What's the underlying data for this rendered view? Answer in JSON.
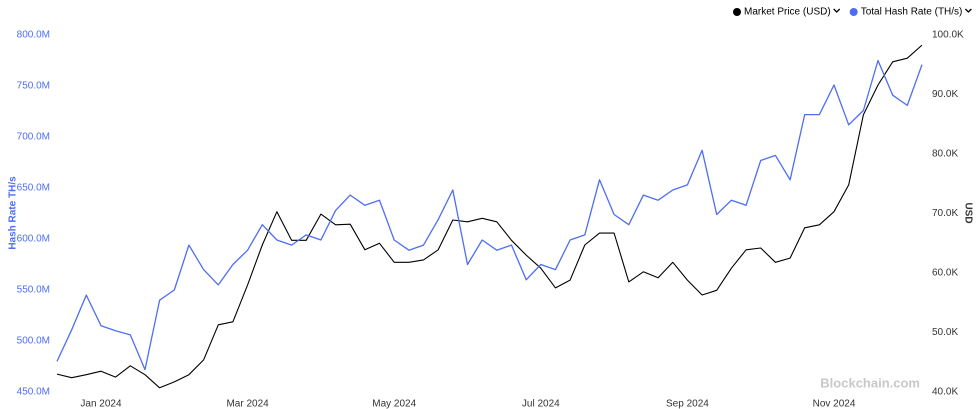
{
  "chart_data": {
    "type": "line",
    "categories": [
      null,
      null,
      null,
      "Jan 2024",
      null,
      null,
      null,
      null,
      null,
      null,
      null,
      null,
      null,
      "Mar 2024",
      null,
      null,
      null,
      null,
      null,
      null,
      null,
      null,
      null,
      "May 2024",
      null,
      null,
      null,
      null,
      null,
      null,
      null,
      null,
      null,
      "Jul 2024",
      null,
      null,
      null,
      null,
      null,
      null,
      null,
      null,
      null,
      "Sep 2024",
      null,
      null,
      null,
      null,
      null,
      null,
      null,
      null,
      null,
      "Nov 2024",
      null,
      null,
      null,
      null,
      null,
      null
    ],
    "series": [
      {
        "name": "Market Price (USD)",
        "color": "#000000",
        "axis": "y2",
        "values": [
          43.0,
          42.4,
          42.9,
          43.5,
          42.5,
          44.4,
          42.9,
          40.7,
          41.7,
          42.9,
          45.4,
          51.3,
          51.8,
          58.0,
          64.7,
          70.3,
          65.5,
          65.5,
          69.9,
          68.1,
          68.2,
          63.9,
          65.0,
          61.8,
          61.8,
          62.2,
          63.9,
          68.9,
          68.6,
          69.2,
          68.6,
          65.5,
          63.0,
          60.8,
          57.5,
          58.8,
          64.7,
          66.7,
          66.7,
          58.5,
          60.2,
          59.2,
          61.8,
          58.8,
          56.3,
          57.1,
          60.8,
          63.9,
          64.2,
          61.8,
          62.5,
          67.6,
          68.1,
          70.3,
          74.8,
          86.6,
          91.6,
          95.5,
          96.1,
          98.3
        ]
      },
      {
        "name": "Total Hash Rate (TH/s)",
        "color": "#4e6ef2",
        "axis": "y",
        "values": [
          480,
          511,
          545,
          515,
          510,
          506,
          472,
          540,
          550,
          594,
          570,
          555,
          575,
          589,
          614,
          599,
          594,
          604,
          599,
          628,
          643,
          633,
          638,
          599,
          589,
          594,
          619,
          648,
          575,
          599,
          589,
          594,
          560,
          575,
          570,
          599,
          604,
          658,
          624,
          614,
          643,
          638,
          648,
          653,
          687,
          624,
          638,
          633,
          677,
          682,
          658,
          722,
          722,
          751,
          712,
          726,
          775,
          741,
          731,
          771
        ]
      }
    ],
    "y_label": "Hash Rate TH/s",
    "y2_label": "USD",
    "ylim": [
      450,
      800
    ],
    "yticks": [
      {
        "value": 450,
        "label": "450.0M"
      },
      {
        "value": 500,
        "label": "500.0M"
      },
      {
        "value": 550,
        "label": "550.0M"
      },
      {
        "value": 600,
        "label": "600.0M"
      },
      {
        "value": 650,
        "label": "650.0M"
      },
      {
        "value": 700,
        "label": "700.0M"
      },
      {
        "value": 750,
        "label": "750.0M"
      },
      {
        "value": 800,
        "label": "800.0M"
      }
    ],
    "y2lim": [
      40,
      100
    ],
    "y2ticks": [
      {
        "value": 40,
        "label": "40.0K"
      },
      {
        "value": 50,
        "label": "50.0K"
      },
      {
        "value": 60,
        "label": "60.0K"
      },
      {
        "value": 70,
        "label": "70.0K"
      },
      {
        "value": 80,
        "label": "80.0K"
      },
      {
        "value": 90,
        "label": "90.0K"
      },
      {
        "value": 100,
        "label": "100.0K"
      }
    ],
    "grid": false,
    "watermark": "Blockchain.com"
  }
}
